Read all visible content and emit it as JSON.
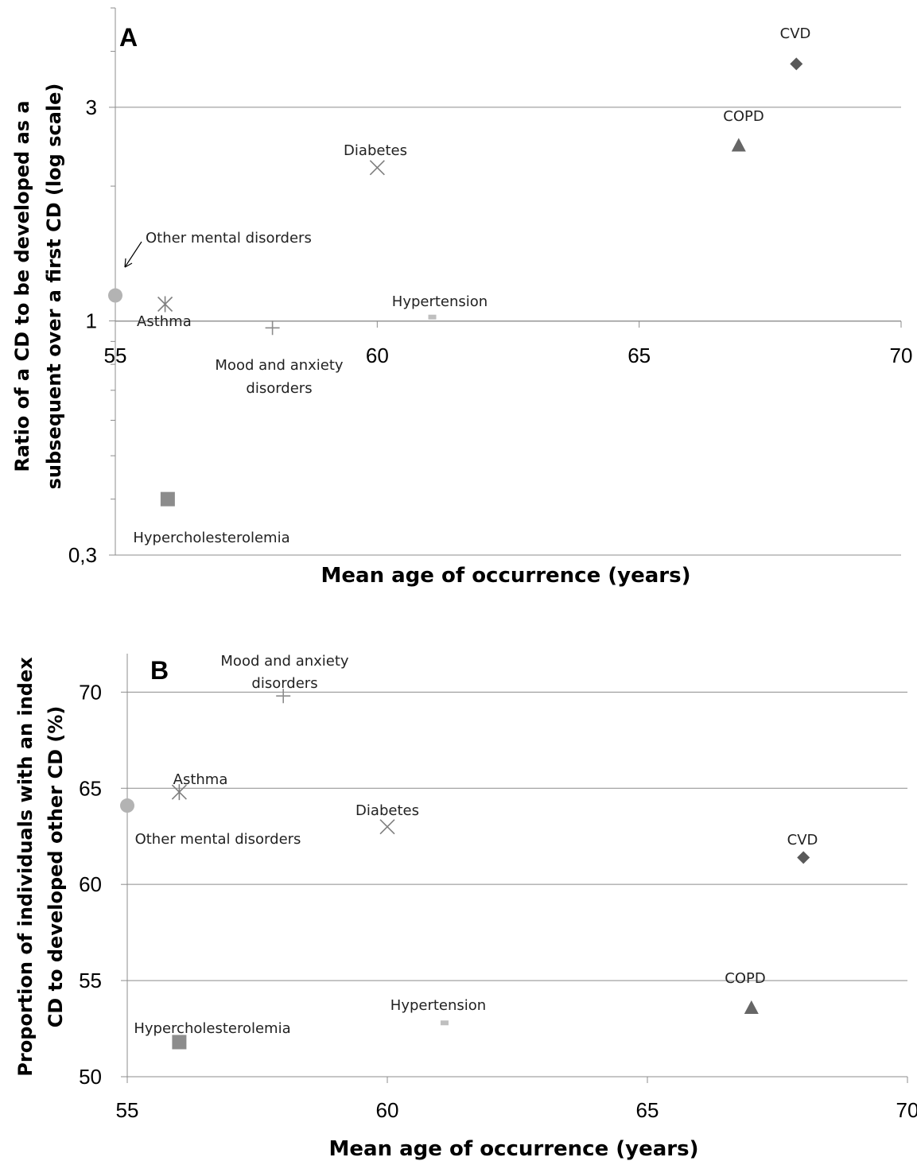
{
  "chart_data": [
    {
      "type": "scatter",
      "panel_label": "A",
      "xlabel": "Mean age of occurrence (years)",
      "ylabel": [
        "Ratio of a CD to be developed as a",
        "subsequent over a first CD (log scale)"
      ],
      "y_scale": "log",
      "xlim": [
        55,
        70
      ],
      "ylim": [
        0.3,
        5.0
      ],
      "x_ticks": [
        55,
        60,
        65,
        70
      ],
      "x_tick_labels": [
        "55",
        "60",
        "65",
        "70"
      ],
      "y_ticks": [
        0.3,
        1,
        3
      ],
      "y_tick_labels": [
        "0,3",
        "1",
        "3"
      ],
      "gridlines_y": [
        1,
        3
      ],
      "points": [
        {
          "label": "CVD",
          "x": 68.0,
          "y": 3.75,
          "marker": "diamond",
          "color": "#595959"
        },
        {
          "label": "COPD",
          "x": 66.9,
          "y": 2.47,
          "marker": "triangle",
          "color": "#666666"
        },
        {
          "label": "Diabetes",
          "x": 60.0,
          "y": 2.2,
          "marker": "x",
          "color": "#7f7f7f"
        },
        {
          "label": "Other mental disorders",
          "x": 55.0,
          "y": 1.14,
          "marker": "circle",
          "color": "#b3b3b3"
        },
        {
          "label": "Asthma",
          "x": 55.95,
          "y": 1.09,
          "marker": "asterisk",
          "color": "#7f7f7f"
        },
        {
          "label": "Hypertension",
          "x": 61.05,
          "y": 1.02,
          "marker": "dash",
          "color": "#bfbfbf"
        },
        {
          "label": "Mood and anxiety disorders",
          "x": 58.0,
          "y": 0.965,
          "marker": "plus",
          "color": "#8c8c8c"
        },
        {
          "label": "Hypercholesterolemia",
          "x": 56.0,
          "y": 0.4,
          "marker": "square",
          "color": "#8c8c8c"
        }
      ]
    },
    {
      "type": "scatter",
      "panel_label": "B",
      "xlabel": "Mean age of occurrence (years)",
      "ylabel": [
        "Proportion of individuals with an index",
        "CD to developed other CD (%)"
      ],
      "xlim": [
        55,
        70
      ],
      "ylim": [
        50,
        72
      ],
      "x_ticks": [
        55,
        60,
        65,
        70
      ],
      "x_tick_labels": [
        "55",
        "60",
        "65",
        "70"
      ],
      "y_ticks": [
        50,
        55,
        60,
        65,
        70
      ],
      "y_tick_labels": [
        "50",
        "55",
        "60",
        "65",
        "70"
      ],
      "gridlines_y": [
        55,
        60,
        65,
        70
      ],
      "points": [
        {
          "label": "Mood and anxiety disorders",
          "x": 58.0,
          "y": 69.8,
          "marker": "plus",
          "color": "#8c8c8c"
        },
        {
          "label": "Asthma",
          "x": 56.0,
          "y": 64.8,
          "marker": "asterisk",
          "color": "#7f7f7f"
        },
        {
          "label": "Other mental disorders",
          "x": 55.0,
          "y": 64.1,
          "marker": "circle",
          "color": "#b3b3b3"
        },
        {
          "label": "Diabetes",
          "x": 60.0,
          "y": 63.0,
          "marker": "x",
          "color": "#7f7f7f"
        },
        {
          "label": "CVD",
          "x": 68.0,
          "y": 61.4,
          "marker": "diamond",
          "color": "#595959"
        },
        {
          "label": "COPD",
          "x": 67.0,
          "y": 53.6,
          "marker": "triangle",
          "color": "#666666"
        },
        {
          "label": "Hypertension",
          "x": 61.1,
          "y": 52.8,
          "marker": "dash",
          "color": "#bfbfbf"
        },
        {
          "label": "Hypercholesterolemia",
          "x": 56.0,
          "y": 51.8,
          "marker": "square",
          "color": "#8c8c8c"
        }
      ]
    }
  ]
}
